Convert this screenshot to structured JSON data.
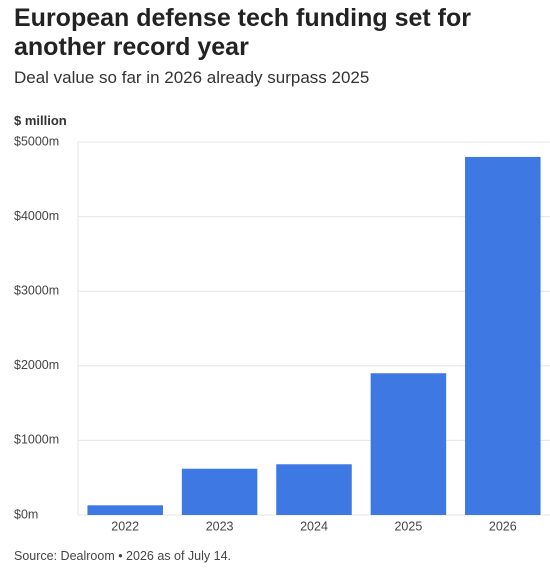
{
  "chart_data": {
    "type": "bar",
    "title": "European defense tech funding set for another record year",
    "subtitle": "Deal value so far in 2026 already surpass 2025",
    "y_label": "$ million",
    "source": "Source: Dealroom • 2026 as of July 14.",
    "categories": [
      "2022",
      "2023",
      "2024",
      "2025",
      "2026"
    ],
    "values": [
      130,
      620,
      680,
      1900,
      4800
    ],
    "color": "#3d78e3",
    "ylim": [
      0,
      5000
    ],
    "yticks": [
      {
        "value": 0,
        "label": "$0m"
      },
      {
        "value": 1000,
        "label": "$1000m"
      },
      {
        "value": 2000,
        "label": "$2000m"
      },
      {
        "value": 3000,
        "label": "$3000m"
      },
      {
        "value": 4000,
        "label": "$4000m"
      },
      {
        "value": 5000,
        "label": "$5000m"
      }
    ],
    "grid": true
  }
}
